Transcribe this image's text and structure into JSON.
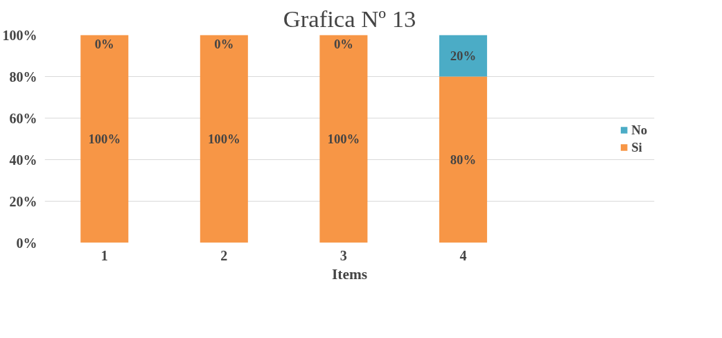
{
  "chart_data": {
    "type": "bar",
    "title": "Grafica Nº 13",
    "xlabel": "Items",
    "categories": [
      "1",
      "2",
      "3",
      "4"
    ],
    "stacked": true,
    "series": [
      {
        "name": "Si",
        "color": "#f79646",
        "values": [
          100,
          100,
          100,
          80
        ],
        "value_labels": [
          "100%",
          "100%",
          "100%",
          "80%"
        ]
      },
      {
        "name": "No",
        "color": "#4bacc6",
        "values": [
          0,
          0,
          0,
          20
        ],
        "value_labels": [
          "0%",
          "0%",
          "0%",
          "20%"
        ]
      }
    ],
    "ylim": [
      0,
      100
    ],
    "yticks": [
      {
        "value": 0,
        "label": "0%"
      },
      {
        "value": 20,
        "label": "20%"
      },
      {
        "value": 40,
        "label": "40%"
      },
      {
        "value": 60,
        "label": "60%"
      },
      {
        "value": 80,
        "label": "80%"
      },
      {
        "value": 100,
        "label": "100%"
      }
    ],
    "grid": "y",
    "legend": "right"
  }
}
